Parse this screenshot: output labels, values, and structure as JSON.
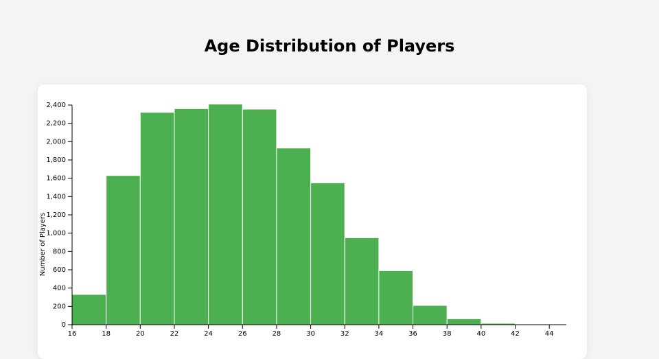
{
  "chart_data": {
    "type": "histogram",
    "title": "Age Distribution of Players",
    "y_label": "Number of Players",
    "bins": [
      16,
      18,
      20,
      22,
      24,
      26,
      28,
      30,
      32,
      34,
      36,
      38,
      40,
      42,
      44
    ],
    "values": [
      330,
      1630,
      2320,
      2360,
      2410,
      2355,
      1930,
      1550,
      950,
      590,
      210,
      65,
      15,
      2
    ],
    "color": "#4caf50",
    "xlim": [
      16,
      45
    ],
    "xticks": [
      16,
      18,
      20,
      22,
      24,
      26,
      28,
      30,
      32,
      34,
      36,
      38,
      40,
      42,
      44
    ],
    "ylim": [
      0,
      2400
    ],
    "yticks": [
      0,
      200,
      400,
      600,
      800,
      {
        "value": 1000,
        "label": "1,000"
      },
      {
        "value": 1200,
        "label": "1,200"
      },
      {
        "value": 1400,
        "label": "1,400"
      },
      {
        "value": 1600,
        "label": "1,600"
      },
      {
        "value": 1800,
        "label": "1,800"
      },
      {
        "value": 2000,
        "label": "2,000"
      },
      {
        "value": 2200,
        "label": "2,200"
      },
      {
        "value": 2400,
        "label": "2,400"
      }
    ]
  }
}
